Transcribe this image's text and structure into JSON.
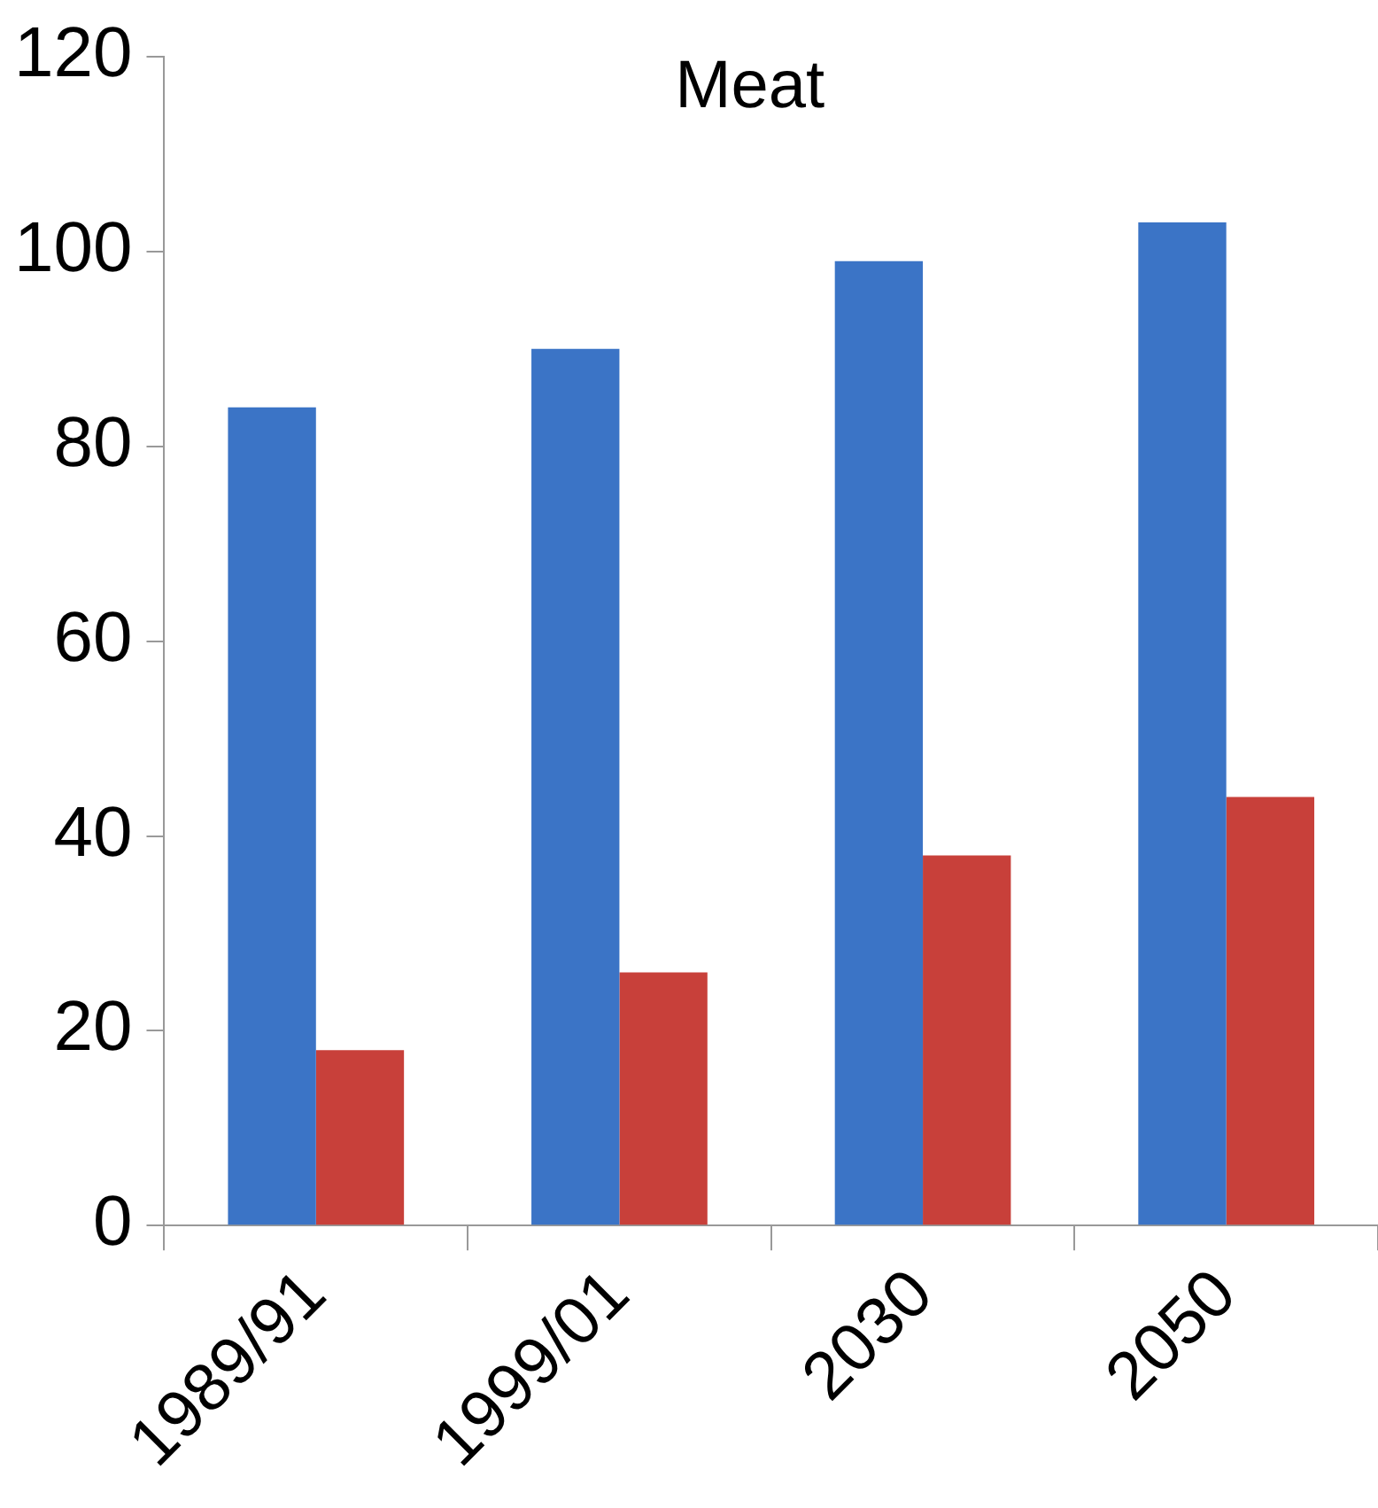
{
  "chart_data": {
    "type": "bar",
    "title": "Meat",
    "categories": [
      "1989/91",
      "1999/01",
      "2030",
      "2050"
    ],
    "series": [
      {
        "color": "#3b74c6",
        "values": [
          84,
          90,
          99,
          103
        ]
      },
      {
        "color": "#c8403a",
        "values": [
          18,
          26,
          38,
          44
        ]
      }
    ],
    "ylim": [
      0,
      120
    ],
    "yticks": [
      0,
      20,
      40,
      60,
      80,
      100,
      120
    ],
    "grid": false,
    "legend": false
  }
}
